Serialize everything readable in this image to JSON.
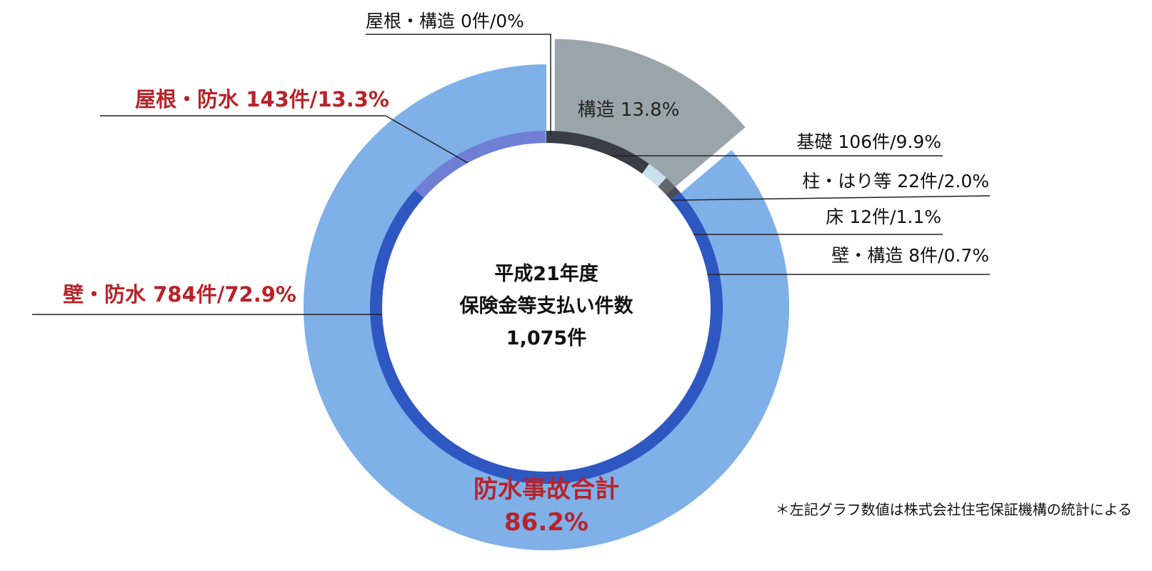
{
  "chart_data": {
    "type": "pie",
    "center": {
      "line1": "平成21年度",
      "line2": "保険金等支払い件数",
      "line3": "1,075件"
    },
    "inner_ring": [
      {
        "label": "屋根・防水 143件/13.3%",
        "name": "屋根・防水",
        "count": 143,
        "percent": 13.3,
        "color": "#6f7fd6",
        "accent": true
      },
      {
        "label": "屋根・構造 0件/0%",
        "name": "屋根・構造",
        "count": 0,
        "percent": 0,
        "color": "#9aa0a4",
        "accent": false
      },
      {
        "label": "基礎 106件/9.9%",
        "name": "基礎",
        "count": 106,
        "percent": 9.9,
        "color": "#3a3d45",
        "accent": false
      },
      {
        "label": "柱・はり等 22件/2.0%",
        "name": "柱・はり等",
        "count": 22,
        "percent": 2.0,
        "color": "#c9e0ef",
        "accent": false
      },
      {
        "label": "床 12件/1.1%",
        "name": "床",
        "count": 12,
        "percent": 1.1,
        "color": "#62666c",
        "accent": false
      },
      {
        "label": "壁・構造 8件/0.7%",
        "name": "壁・構造",
        "count": 8,
        "percent": 0.7,
        "color": "#4a4d55",
        "accent": false
      },
      {
        "label": "壁・防水 784件/72.9%",
        "name": "壁・防水",
        "count": 784,
        "percent": 72.9,
        "color": "#2f57c2",
        "accent": true
      }
    ],
    "outer_ring": [
      {
        "label": "構造 13.8%",
        "percent": 13.8,
        "color": "#9aa5ab",
        "exploded": true
      },
      {
        "label": "防水事故合計",
        "value_label": "86.2%",
        "percent": 86.2,
        "color": "#7fb0e8",
        "exploded": false
      }
    ],
    "footnote": "＊左記グラフ数値は株式会社住宅保証機構の統計による",
    "accent_color": "#b8232a",
    "text_color": "#111111"
  }
}
